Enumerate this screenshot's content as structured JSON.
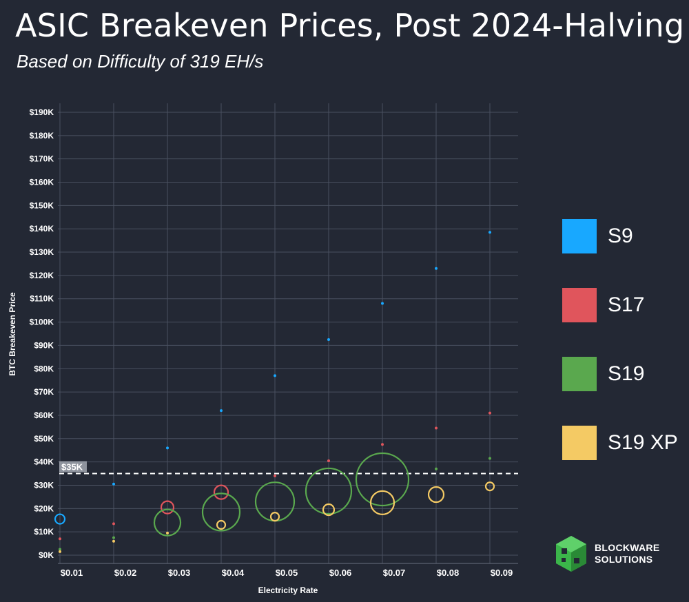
{
  "title": "ASIC Breakeven Prices, Post 2024-Halving",
  "subtitle": "Based on Difficulty of 319 EH/s",
  "logo": {
    "line1": "BLOCKWARE",
    "line2": "SOLUTIONS",
    "color": "#3bb54a"
  },
  "chart_data": {
    "type": "scatter",
    "xlabel": "Electricity Rate",
    "ylabel": "BTC Breakeven Price",
    "x": [
      0.01,
      0.02,
      0.03,
      0.04,
      0.05,
      0.06,
      0.07,
      0.08,
      0.09
    ],
    "x_ticks": [
      "$0.01",
      "$0.02",
      "$0.03",
      "$0.04",
      "$0.05",
      "$0.06",
      "$0.07",
      "$0.08",
      "$0.09"
    ],
    "y_ticks": [
      "$0K",
      "$10K",
      "$20K",
      "$30K",
      "$40K",
      "$50K",
      "$60K",
      "$70K",
      "$80K",
      "$90K",
      "$100K",
      "$110K",
      "$120K",
      "$130K",
      "$140K",
      "$150K",
      "$160K",
      "$170K",
      "$180K",
      "$190K"
    ],
    "xlim": [
      0.01,
      0.095
    ],
    "ylim": [
      0,
      195000
    ],
    "grid": true,
    "legend_position": "right",
    "bubble_size_note": "bubble size varies",
    "reference_line": {
      "value": 35000,
      "label": "$35K",
      "style": "dashed"
    },
    "series": [
      {
        "name": "S9",
        "color": "#18a8ff",
        "x": [
          0.01,
          0.02,
          0.03,
          0.04,
          0.05,
          0.06,
          0.07,
          0.08,
          0.09
        ],
        "y": [
          15500,
          30500,
          46000,
          62000,
          77000,
          92500,
          108000,
          123000,
          138500
        ],
        "size": [
          7,
          2,
          2,
          2,
          2,
          2,
          2,
          2,
          2
        ]
      },
      {
        "name": "S17",
        "color": "#e0555c",
        "x": [
          0.01,
          0.02,
          0.03,
          0.04,
          0.05,
          0.06,
          0.07,
          0.08,
          0.09
        ],
        "y": [
          7000,
          13500,
          20500,
          27000,
          34000,
          40500,
          47500,
          54500,
          61000
        ],
        "size": [
          2,
          2,
          9,
          10,
          2,
          2,
          2,
          2,
          2
        ]
      },
      {
        "name": "S19",
        "color": "#5aa84e",
        "x": [
          0.01,
          0.02,
          0.03,
          0.04,
          0.05,
          0.06,
          0.07,
          0.08,
          0.09
        ],
        "y": [
          2500,
          7500,
          14000,
          18500,
          23000,
          27500,
          32500,
          37000,
          41500
        ],
        "size": [
          2,
          2,
          19,
          27,
          28,
          33,
          38,
          2,
          2
        ]
      },
      {
        "name": "S19 XP",
        "color": "#f4ca64",
        "x": [
          0.01,
          0.02,
          0.03,
          0.04,
          0.05,
          0.06,
          0.07,
          0.08,
          0.09
        ],
        "y": [
          1500,
          6000,
          9500,
          13000,
          16500,
          19500,
          22500,
          26000,
          29500
        ],
        "size": [
          2,
          2,
          2,
          6,
          6,
          8,
          17,
          11,
          6
        ]
      }
    ]
  }
}
